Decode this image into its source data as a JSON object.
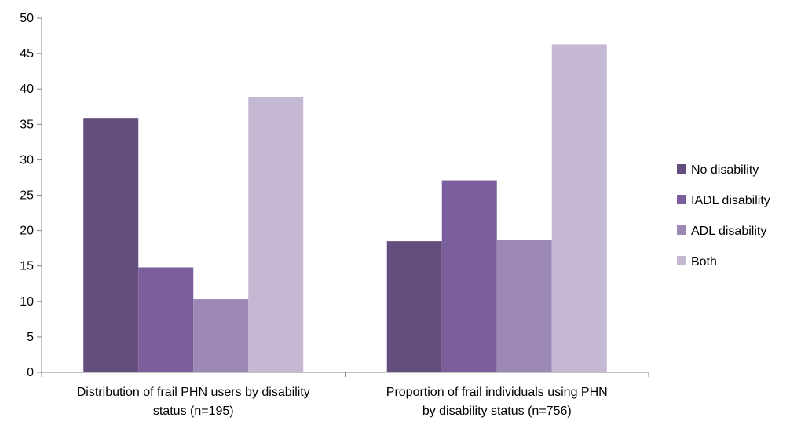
{
  "chart_data": {
    "type": "bar",
    "categories": [
      [
        "Distribution of frail PHN users by disability",
        "status (n=195)"
      ],
      [
        "Proportion of frail individuals using PHN",
        "by disability status (n=756)"
      ]
    ],
    "series": [
      {
        "name": "No disability",
        "color": "#644e7e",
        "values": [
          35.9,
          18.5
        ]
      },
      {
        "name": "IADL disability",
        "color": "#7b5f9d",
        "values": [
          14.8,
          27.1
        ]
      },
      {
        "name": "ADL disability",
        "color": "#9c89b6",
        "values": [
          10.3,
          18.7
        ]
      },
      {
        "name": "Both",
        "color": "#c4b8d2",
        "values": [
          38.9,
          46.3
        ]
      }
    ],
    "title": "",
    "xlabel": "",
    "ylabel": "",
    "ylim": [
      0,
      50
    ],
    "yticks": [
      0,
      5,
      10,
      15,
      20,
      25,
      30,
      35,
      40,
      45,
      50
    ],
    "grid": false,
    "legend": "right"
  }
}
